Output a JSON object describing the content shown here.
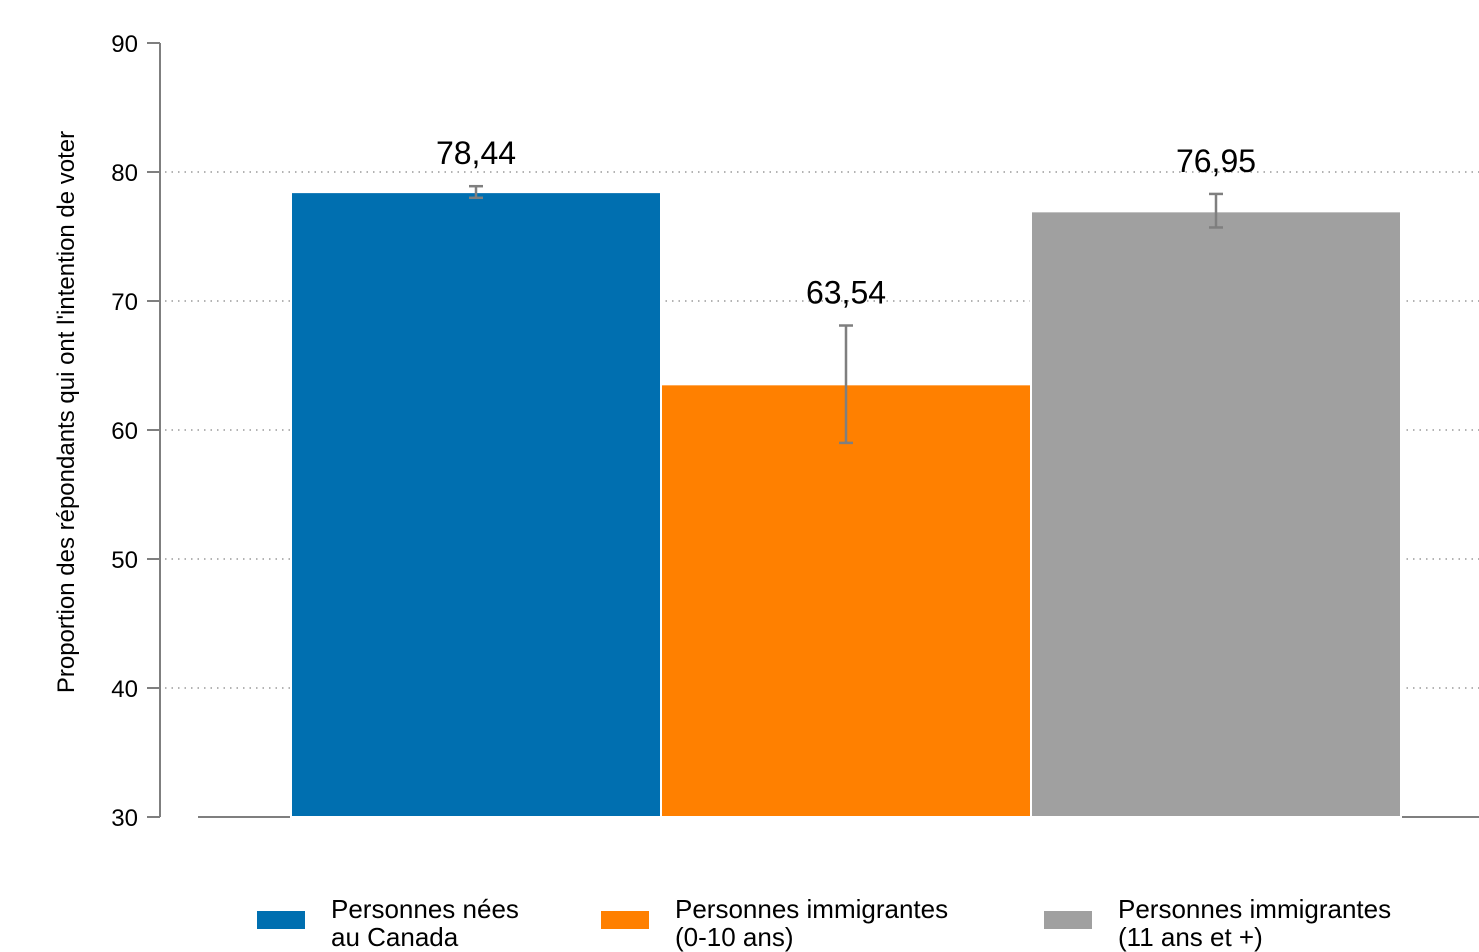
{
  "chart_data": {
    "type": "bar",
    "title": "",
    "xlabel": "",
    "ylabel": "Proportion des répondants qui ont l'intention de voter",
    "ylim": [
      30,
      90
    ],
    "yticks": [
      30,
      40,
      50,
      60,
      70,
      80,
      90
    ],
    "grid": "horizontal dotted",
    "legend_position": "bottom",
    "series": [
      {
        "name": "Personnes nées\nau Canada",
        "value": 78.44,
        "label": "78,44",
        "error_low": 78.0,
        "error_high": 78.9,
        "color": "#006fb0"
      },
      {
        "name": "Personnes immigrantes\n(0-10 ans)",
        "value": 63.54,
        "label": "63,54",
        "error_low": 59.0,
        "error_high": 68.1,
        "color": "#ff8000"
      },
      {
        "name": "Personnes immigrantes\n(11 ans et +)",
        "value": 76.95,
        "label": "76,95",
        "error_low": 75.7,
        "error_high": 78.3,
        "color": "#a0a0a0"
      }
    ]
  }
}
